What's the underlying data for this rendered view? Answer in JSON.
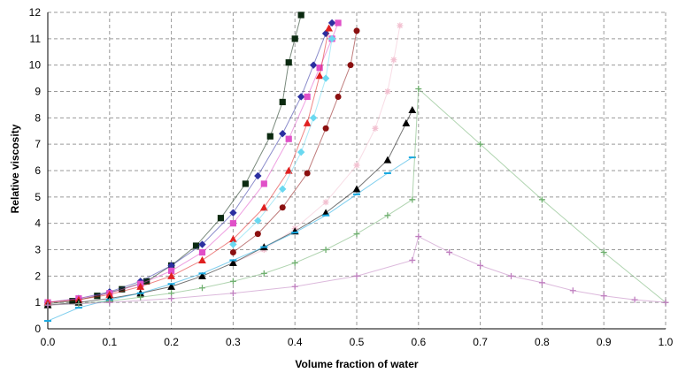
{
  "chart_data": {
    "type": "scatter",
    "title": "",
    "xlabel": "Volume fraction of water",
    "ylabel": "Relative viscosity",
    "xlim": [
      0,
      1
    ],
    "ylim": [
      0,
      12
    ],
    "xticks": [
      "0.0",
      "0.1",
      "0.2",
      "0.3",
      "0.4",
      "0.5",
      "0.6",
      "0.7",
      "0.8",
      "0.9",
      "1.0"
    ],
    "yticks": [
      "0",
      "1",
      "2",
      "3",
      "4",
      "5",
      "6",
      "7",
      "8",
      "9",
      "10",
      "11",
      "12"
    ],
    "grid": "dashed",
    "legend": "none",
    "series": [
      {
        "marker": "square",
        "color": "#0b2a10",
        "x": [
          0,
          0.04,
          0.08,
          0.12,
          0.16,
          0.2,
          0.24,
          0.28,
          0.32,
          0.36,
          0.38,
          0.39,
          0.4,
          0.41
        ],
        "y": [
          0.95,
          1.05,
          1.25,
          1.5,
          1.8,
          2.4,
          3.15,
          4.2,
          5.5,
          7.3,
          8.6,
          10.1,
          11.0,
          11.9
        ]
      },
      {
        "marker": "diamond",
        "color": "#2b2ea0",
        "x": [
          0,
          0.05,
          0.1,
          0.15,
          0.2,
          0.25,
          0.3,
          0.34,
          0.38,
          0.41,
          0.43,
          0.45,
          0.46
        ],
        "y": [
          1.0,
          1.15,
          1.4,
          1.8,
          2.4,
          3.2,
          4.4,
          5.8,
          7.4,
          8.8,
          10.0,
          11.2,
          11.6
        ]
      },
      {
        "marker": "square",
        "color": "#e050c8",
        "x": [
          0,
          0.05,
          0.1,
          0.15,
          0.2,
          0.25,
          0.3,
          0.35,
          0.39,
          0.42,
          0.44,
          0.46,
          0.47
        ],
        "y": [
          1.0,
          1.15,
          1.35,
          1.7,
          2.2,
          2.9,
          4.0,
          5.5,
          7.2,
          8.8,
          9.9,
          11.0,
          11.6
        ]
      },
      {
        "marker": "triangle",
        "color": "#e02020",
        "x": [
          0,
          0.05,
          0.1,
          0.15,
          0.2,
          0.25,
          0.3,
          0.35,
          0.39,
          0.42,
          0.44,
          0.455
        ],
        "y": [
          1.0,
          1.1,
          1.3,
          1.6,
          2.0,
          2.6,
          3.4,
          4.6,
          6.0,
          7.8,
          9.6,
          11.4
        ]
      },
      {
        "marker": "diamond",
        "color": "#6ad8f0",
        "x": [
          0.3,
          0.34,
          0.38,
          0.41,
          0.43,
          0.45,
          0.46
        ],
        "y": [
          3.2,
          4.1,
          5.3,
          6.7,
          8.0,
          9.5,
          11.0
        ]
      },
      {
        "marker": "circle",
        "color": "#8b1010",
        "x": [
          0.3,
          0.34,
          0.38,
          0.42,
          0.45,
          0.47,
          0.49,
          0.5
        ],
        "y": [
          2.9,
          3.6,
          4.6,
          5.9,
          7.6,
          8.8,
          10.0,
          11.3
        ]
      },
      {
        "marker": "star",
        "color": "#f2c0d0",
        "x": [
          0.3,
          0.35,
          0.4,
          0.45,
          0.5,
          0.53,
          0.55,
          0.56,
          0.57
        ],
        "y": [
          2.5,
          3.0,
          3.8,
          4.8,
          6.2,
          7.6,
          9.0,
          10.2,
          11.5
        ]
      },
      {
        "marker": "triangle",
        "color": "#000000",
        "x": [
          0,
          0.05,
          0.1,
          0.15,
          0.2,
          0.25,
          0.3,
          0.35,
          0.4,
          0.45,
          0.5,
          0.55,
          0.58,
          0.59
        ],
        "y": [
          0.9,
          1.0,
          1.15,
          1.35,
          1.6,
          2.0,
          2.5,
          3.1,
          3.7,
          4.4,
          5.3,
          6.4,
          7.8,
          8.3
        ]
      },
      {
        "marker": "dash",
        "color": "#18a8e0",
        "x": [
          0,
          0.05,
          0.1,
          0.15,
          0.2,
          0.25,
          0.3,
          0.35,
          0.4,
          0.45,
          0.5,
          0.55,
          0.59
        ],
        "y": [
          0.3,
          0.8,
          1.1,
          1.35,
          1.7,
          2.1,
          2.6,
          3.1,
          3.65,
          4.3,
          5.1,
          5.9,
          6.5
        ]
      },
      {
        "marker": "plus",
        "color": "#70b070",
        "x": [
          0,
          0.05,
          0.1,
          0.15,
          0.2,
          0.25,
          0.3,
          0.35,
          0.4,
          0.45,
          0.5,
          0.55,
          0.59,
          0.6,
          0.7,
          0.8,
          0.9,
          1.0
        ],
        "y": [
          0.9,
          0.95,
          1.05,
          1.2,
          1.35,
          1.55,
          1.8,
          2.1,
          2.5,
          3.0,
          3.6,
          4.3,
          4.9,
          9.1,
          7.0,
          4.9,
          2.9,
          1.0
        ]
      },
      {
        "marker": "plus",
        "color": "#c080c0",
        "x": [
          0,
          0.1,
          0.2,
          0.3,
          0.4,
          0.5,
          0.59,
          0.6,
          0.65,
          0.7,
          0.75,
          0.8,
          0.85,
          0.9,
          0.95,
          1.0
        ],
        "y": [
          0.9,
          1.0,
          1.15,
          1.35,
          1.6,
          2.0,
          2.6,
          3.5,
          2.9,
          2.4,
          2.0,
          1.75,
          1.45,
          1.25,
          1.1,
          1.0
        ]
      }
    ]
  }
}
